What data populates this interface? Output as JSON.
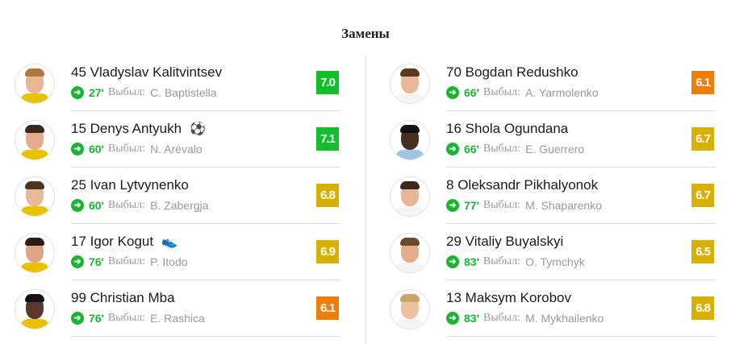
{
  "title": "Замены",
  "out_label": "Выбыл:",
  "colors": {
    "green": "#17b530",
    "yellow": "#d8b000",
    "orange": "#ef7d0a"
  },
  "left": [
    {
      "number": "45",
      "name": "Vladyslav Kalitvintsev",
      "minute": "27'",
      "replaced": "C. Baptistella",
      "rating": "7.0",
      "rating_color": "#12be2a",
      "icon": ""
    },
    {
      "number": "15",
      "name": "Denys Antyukh",
      "minute": "60'",
      "replaced": "N. Arévalo",
      "rating": "7.1",
      "rating_color": "#12be2a",
      "icon": "goal-ball-icon"
    },
    {
      "number": "25",
      "name": "Ivan Lytvynenko",
      "minute": "60'",
      "replaced": "B. Zabergja",
      "rating": "6.8",
      "rating_color": "#d8b000",
      "icon": ""
    },
    {
      "number": "17",
      "name": "Igor Kogut",
      "minute": "76'",
      "replaced": "P. Itodo",
      "rating": "6.9",
      "rating_color": "#d8b000",
      "icon": "assist-boot-icon"
    },
    {
      "number": "99",
      "name": "Christian Mba",
      "minute": "76'",
      "replaced": "E. Rashica",
      "rating": "6.1",
      "rating_color": "#ef7d0a",
      "icon": ""
    }
  ],
  "right": [
    {
      "number": "70",
      "name": "Bogdan Redushko",
      "minute": "66'",
      "replaced": "A. Yarmolenko",
      "rating": "6.1",
      "rating_color": "#ef7d0a",
      "icon": ""
    },
    {
      "number": "16",
      "name": "Shola Ogundana",
      "minute": "66'",
      "replaced": "E. Guerrero",
      "rating": "6.7",
      "rating_color": "#d8b000",
      "icon": ""
    },
    {
      "number": "8",
      "name": "Oleksandr Pikhalyonok",
      "minute": "77'",
      "replaced": "M. Shaparenko",
      "rating": "6.7",
      "rating_color": "#d8b000",
      "icon": ""
    },
    {
      "number": "29",
      "name": "Vitaliy Buyalskyi",
      "minute": "83'",
      "replaced": "O. Tymchyk",
      "rating": "6.5",
      "rating_color": "#d8b000",
      "icon": ""
    },
    {
      "number": "13",
      "name": "Maksym Korobov",
      "minute": "83'",
      "replaced": "M. Mykhailenko",
      "rating": "6.8",
      "rating_color": "#d8b000",
      "icon": ""
    }
  ]
}
